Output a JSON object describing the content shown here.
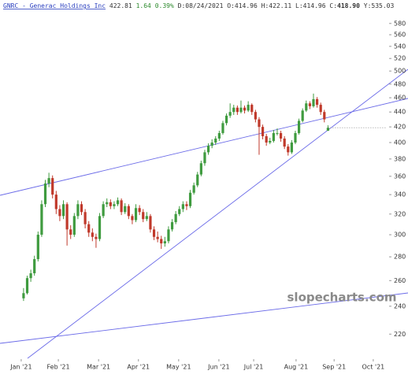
{
  "header": {
    "symbol": "GNRC - Generac Holdings Inc",
    "last": "422.81",
    "change": "1.64",
    "change_pct": "0.39%",
    "date_label": "D:",
    "date": "08/24/2021",
    "open_label": "O:",
    "open": "414.96",
    "high_label": "H:",
    "high": "422.11",
    "low_label": "L:",
    "low": "414.96",
    "close_label": "C:",
    "close": "418.90",
    "y_label": "Y:",
    "y": "535.03"
  },
  "watermark": "slopecharts.com",
  "chart_data": {
    "type": "candlestick",
    "log_scale": true,
    "grid": false,
    "up_color": "#3f9b3f",
    "down_color": "#c0392b",
    "ylim": [
      204,
      600
    ],
    "yticks": [
      220,
      240,
      260,
      280,
      300,
      320,
      340,
      360,
      380,
      400,
      420,
      440,
      460,
      480,
      500,
      520,
      540,
      560,
      580
    ],
    "xlim": [
      -6.5,
      100
    ],
    "xticks": [
      {
        "value": -0.65,
        "label": "Jan '21"
      },
      {
        "value": 9.6,
        "label": "Feb '21"
      },
      {
        "value": 20.7,
        "label": "Mar '21"
      },
      {
        "value": 31.7,
        "label": "Apr '21"
      },
      {
        "value": 42.8,
        "label": "May '21"
      },
      {
        "value": 53.9,
        "label": "Jun '21"
      },
      {
        "value": 63.5,
        "label": "Jul '21"
      },
      {
        "value": 75.2,
        "label": "Aug '21"
      },
      {
        "value": 85.7,
        "label": "Sep '21"
      },
      {
        "value": 96.5,
        "label": "Oct '21"
      }
    ],
    "ohlc": [
      [
        246,
        254,
        244,
        250
      ],
      [
        250,
        264,
        249,
        262
      ],
      [
        262,
        269,
        259,
        266
      ],
      [
        266,
        281,
        264,
        278
      ],
      [
        278,
        303,
        276,
        300
      ],
      [
        300,
        334,
        298,
        330
      ],
      [
        330,
        356,
        327,
        352
      ],
      [
        352,
        364,
        348,
        358
      ],
      [
        358,
        361,
        336,
        340
      ],
      [
        340,
        344,
        320,
        325
      ],
      [
        325,
        329,
        313,
        318
      ],
      [
        318,
        334,
        315,
        330
      ],
      [
        330,
        332,
        290,
        305
      ],
      [
        305,
        309,
        296,
        300
      ],
      [
        300,
        321,
        298,
        318
      ],
      [
        318,
        334,
        315,
        330
      ],
      [
        330,
        333,
        319,
        322
      ],
      [
        322,
        325,
        306,
        310
      ],
      [
        310,
        313,
        298,
        302
      ],
      [
        302,
        306,
        294,
        298
      ],
      [
        298,
        301,
        288,
        296
      ],
      [
        296,
        321,
        294,
        318
      ],
      [
        318,
        333,
        316,
        330
      ],
      [
        330,
        336,
        327,
        332
      ],
      [
        332,
        335,
        325,
        328
      ],
      [
        328,
        333,
        325,
        330
      ],
      [
        330,
        337,
        328,
        334
      ],
      [
        334,
        336,
        319,
        322
      ],
      [
        322,
        331,
        320,
        328
      ],
      [
        328,
        330,
        315,
        318
      ],
      [
        318,
        320,
        310,
        314
      ],
      [
        314,
        330,
        312,
        326
      ],
      [
        326,
        329,
        319,
        322
      ],
      [
        322,
        325,
        312,
        315
      ],
      [
        315,
        322,
        313,
        318
      ],
      [
        318,
        320,
        302,
        305
      ],
      [
        305,
        308,
        295,
        298
      ],
      [
        298,
        303,
        293,
        296
      ],
      [
        296,
        299,
        287,
        292
      ],
      [
        292,
        298,
        289,
        294
      ],
      [
        294,
        308,
        292,
        305
      ],
      [
        305,
        315,
        303,
        312
      ],
      [
        312,
        323,
        310,
        320
      ],
      [
        320,
        328,
        318,
        325
      ],
      [
        325,
        333,
        322,
        330
      ],
      [
        330,
        333,
        324,
        328
      ],
      [
        328,
        345,
        326,
        342
      ],
      [
        342,
        353,
        340,
        350
      ],
      [
        350,
        365,
        348,
        362
      ],
      [
        362,
        378,
        360,
        375
      ],
      [
        375,
        391,
        372,
        388
      ],
      [
        388,
        399,
        385,
        396
      ],
      [
        396,
        404,
        393,
        400
      ],
      [
        400,
        408,
        397,
        405
      ],
      [
        405,
        415,
        402,
        412
      ],
      [
        412,
        428,
        410,
        425
      ],
      [
        425,
        438,
        422,
        435
      ],
      [
        435,
        452,
        432,
        440
      ],
      [
        440,
        450,
        436,
        446
      ],
      [
        446,
        449,
        436,
        440
      ],
      [
        440,
        456,
        438,
        446
      ],
      [
        446,
        449,
        438,
        442
      ],
      [
        442,
        455,
        440,
        450
      ],
      [
        450,
        452,
        436,
        440
      ],
      [
        440,
        443,
        426,
        430
      ],
      [
        430,
        433,
        385,
        420
      ],
      [
        420,
        423,
        404,
        408
      ],
      [
        408,
        411,
        396,
        400
      ],
      [
        400,
        406,
        398,
        402
      ],
      [
        402,
        416,
        400,
        412
      ],
      [
        412,
        418,
        409,
        412
      ],
      [
        412,
        415,
        401,
        405
      ],
      [
        405,
        408,
        392,
        395
      ],
      [
        395,
        398,
        384,
        388
      ],
      [
        388,
        403,
        386,
        400
      ],
      [
        400,
        415,
        398,
        412
      ],
      [
        412,
        431,
        410,
        428
      ],
      [
        428,
        445,
        426,
        442
      ],
      [
        442,
        456,
        440,
        452
      ],
      [
        452,
        455,
        444,
        448
      ],
      [
        448,
        466,
        446,
        458
      ],
      [
        458,
        461,
        446,
        450
      ],
      [
        450,
        453,
        436,
        440
      ],
      [
        440,
        443,
        426,
        430
      ],
      [
        414.96,
        422.11,
        414.96,
        418.9
      ]
    ]
  }
}
